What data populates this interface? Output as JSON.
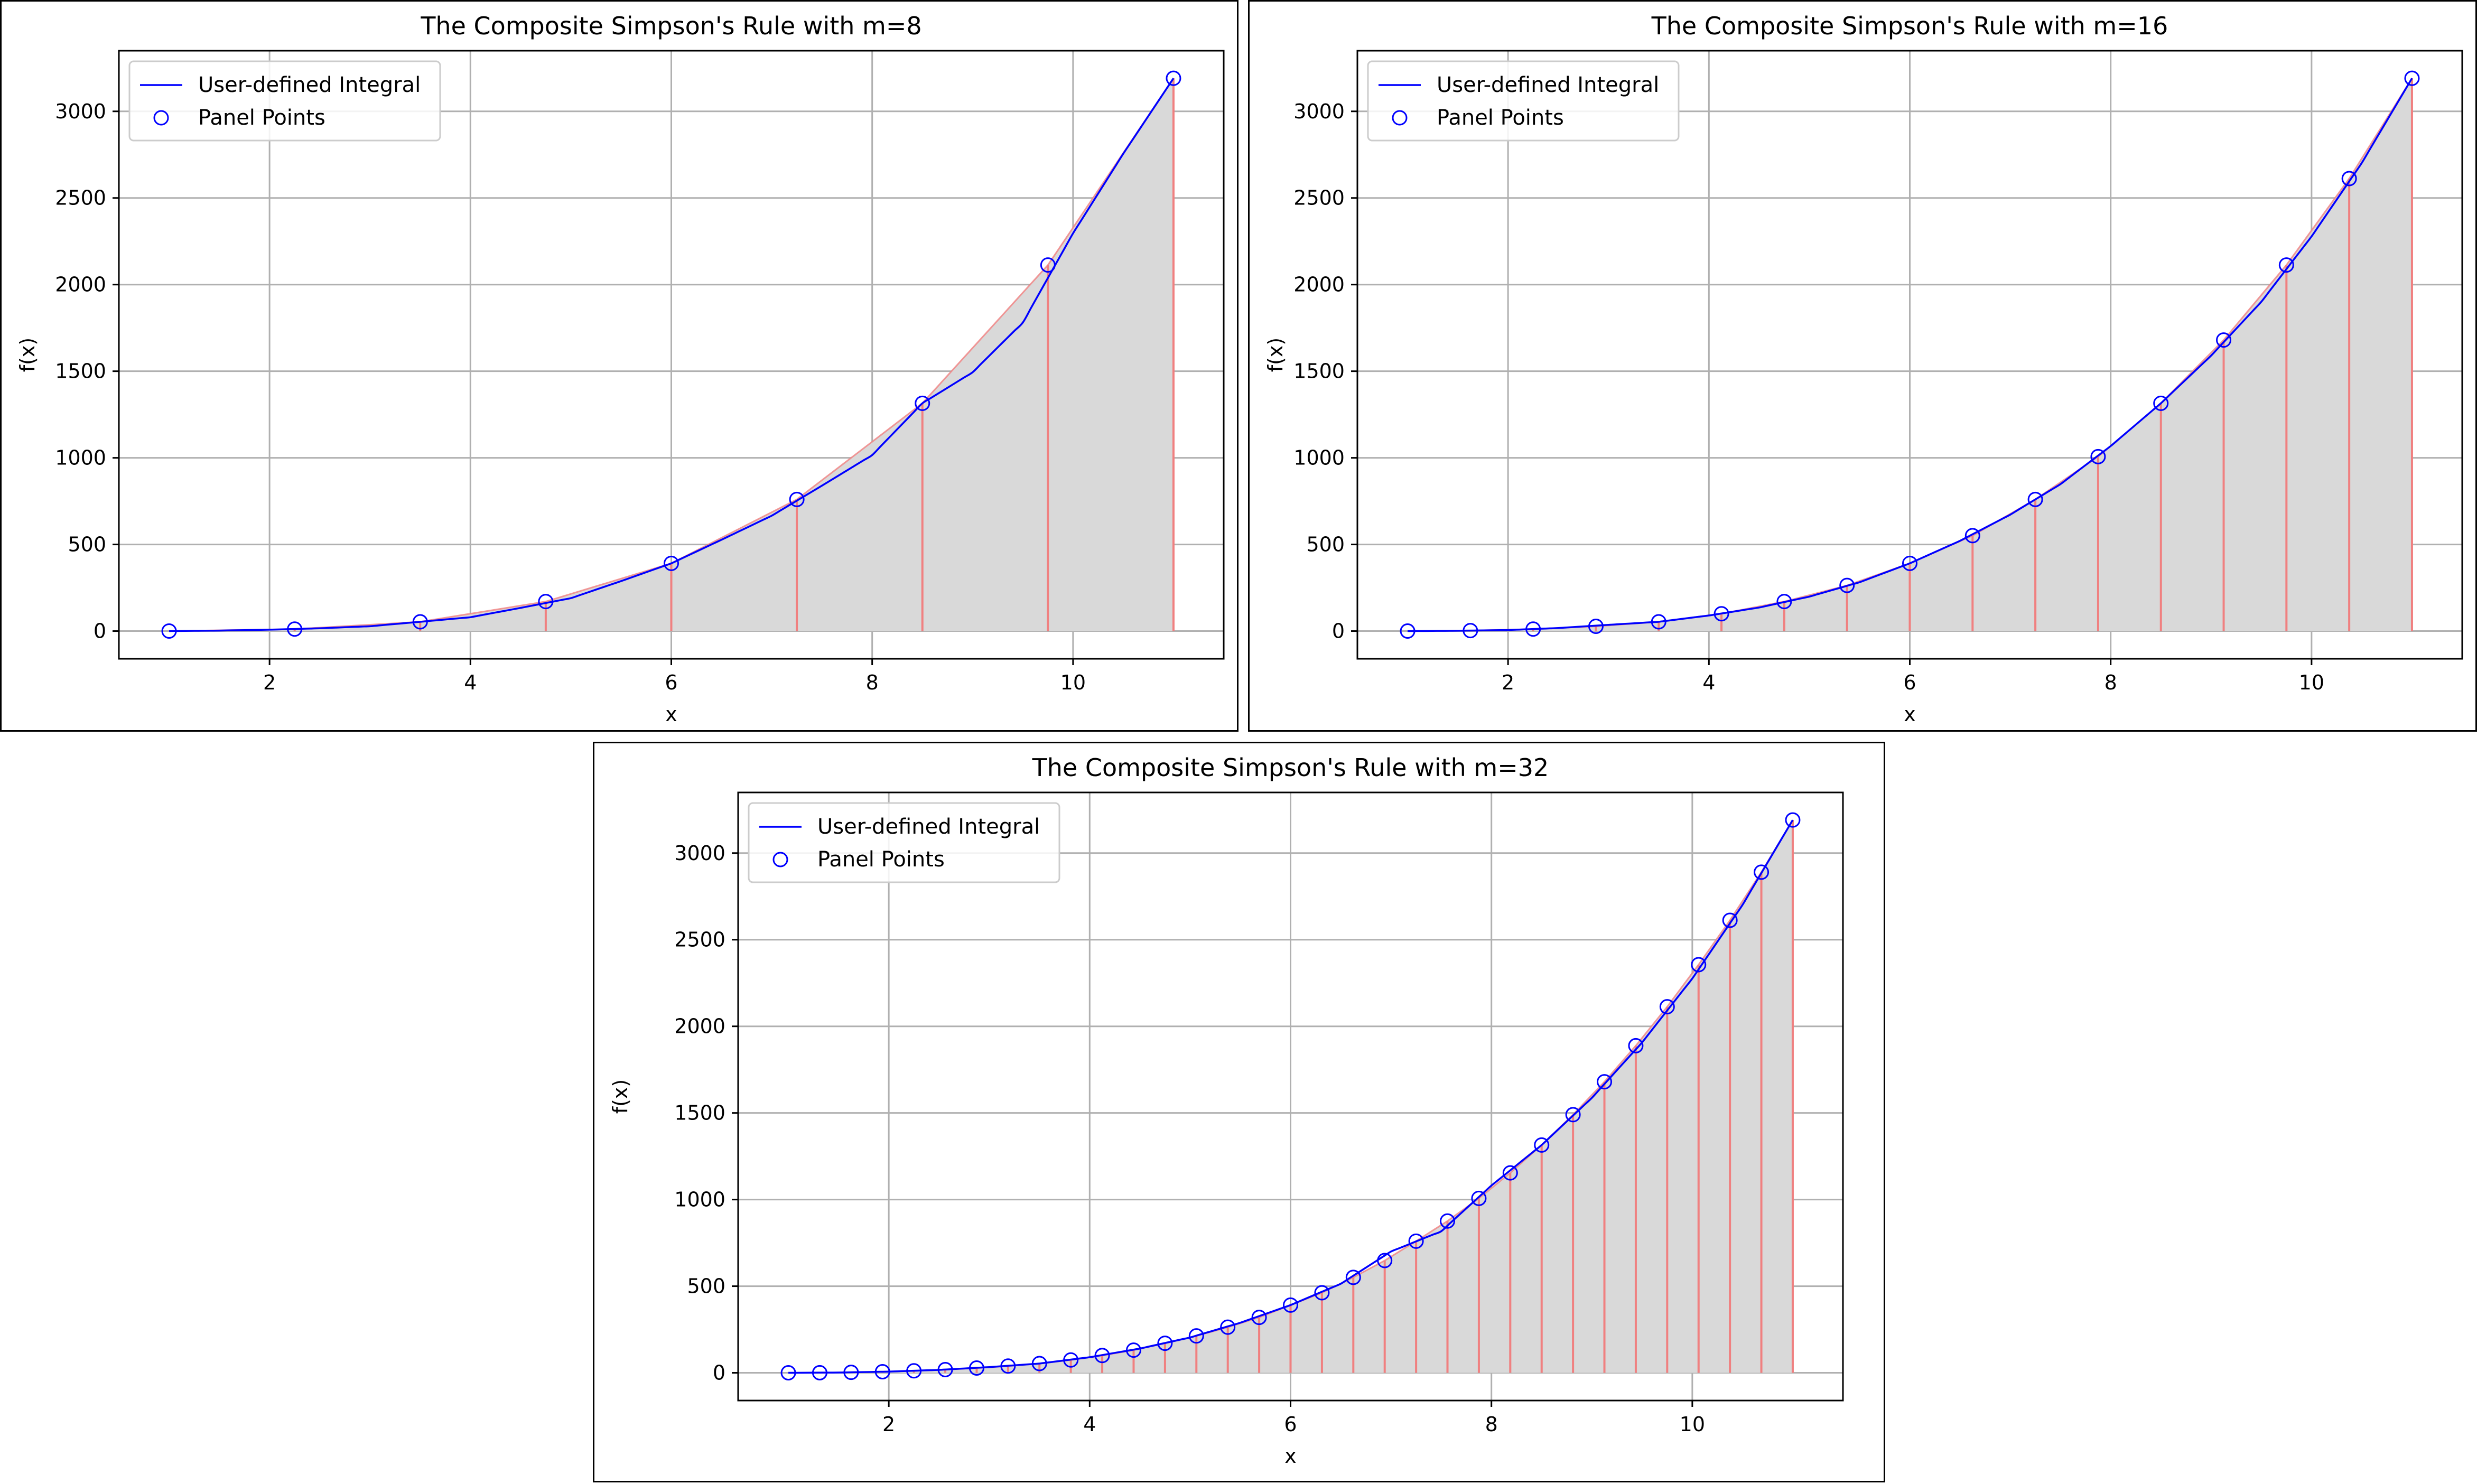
{
  "charts": [
    {
      "title": "The Composite Simpson's Rule with m=8",
      "xlabel": "x",
      "ylabel": "f(x)",
      "legend": {
        "line_label": "User-defined Integral",
        "points_label": "Panel Points",
        "position": "top-left"
      }
    },
    {
      "title": "The Composite Simpson's Rule with m=16",
      "xlabel": "x",
      "ylabel": "f(x)",
      "legend": {
        "line_label": "User-defined Integral",
        "points_label": "Panel Points",
        "position": "top-left"
      }
    },
    {
      "title": "The Composite Simpson's Rule with m=32",
      "xlabel": "x",
      "ylabel": "f(x)",
      "legend": {
        "line_label": "User-defined Integral",
        "points_label": "Panel Points",
        "position": "top-left"
      }
    }
  ],
  "colors": {
    "curve": "#0000ff",
    "points": "#0000ff",
    "fill": "#d9d9d9",
    "verticals": "#f08080",
    "grid": "#b0b0b0"
  },
  "chart_data": [
    {
      "type": "line",
      "title": "The Composite Simpson's Rule with m=8",
      "xlabel": "x",
      "ylabel": "f(x)",
      "xlim": [
        0.5,
        11.5
      ],
      "ylim": [
        -160,
        3350
      ],
      "xticks": [
        2,
        4,
        6,
        8,
        10
      ],
      "yticks": [
        0,
        500,
        1000,
        1500,
        2000,
        2500,
        3000
      ],
      "grid": true,
      "legend": "top-left",
      "series": [
        {
          "name": "Panel Points",
          "x": [
            1.0,
            2.25,
            3.5,
            4.75,
            6.0,
            7.25,
            8.5,
            9.75,
            11.0
          ],
          "y": [
            0,
            11.4,
            53.6,
            170.4,
            391.0,
            760.0,
            1315.0,
            2113.0,
            3191.0
          ]
        },
        {
          "name": "User-defined Integral",
          "x": [
            1.0,
            1.5,
            2.0,
            2.5,
            3.0,
            3.5,
            4.0,
            4.5,
            5.0,
            5.5,
            6.0,
            6.5,
            7.0,
            7.5,
            8.0,
            8.5,
            9.0,
            9.5,
            10.0,
            10.5,
            11.0
          ],
          "y": [
            0.0,
            2.9,
            8.0,
            16.1,
            28.0,
            53.6,
            80.0,
            133.9,
            190.0,
            288.4,
            391.0,
            527.2,
            666.0,
            839.4,
            1016.0,
            1315.0,
            1494.0,
            1781.2,
            2296.0,
            2755.4,
            3191.0
          ]
        }
      ]
    },
    {
      "type": "line",
      "title": "The Composite Simpson's Rule with m=16",
      "xlabel": "x",
      "ylabel": "f(x)",
      "xlim": [
        0.5,
        11.5
      ],
      "ylim": [
        -160,
        3350
      ],
      "xticks": [
        2,
        4,
        6,
        8,
        10
      ],
      "yticks": [
        0,
        500,
        1000,
        1500,
        2000,
        2500,
        3000
      ],
      "grid": true,
      "legend": "top-left",
      "series": [
        {
          "name": "Panel Points",
          "x": [
            1.0,
            1.625,
            2.25,
            2.875,
            3.5,
            4.125,
            4.75,
            5.375,
            6.0,
            6.625,
            7.25,
            7.875,
            8.5,
            9.125,
            9.75,
            10.375,
            11.0
          ],
          "y": [
            0,
            2.7,
            11.4,
            27.6,
            53.6,
            100.0,
            170.4,
            263.4,
            391.0,
            551.0,
            760.0,
            1007.0,
            1315.0,
            1680.0,
            2113.0,
            2612.0,
            3191.0
          ]
        },
        {
          "name": "User-defined Integral",
          "x": [
            1.0,
            1.5,
            2.0,
            2.5,
            3.0,
            3.5,
            4.0,
            4.5,
            5.0,
            5.5,
            6.0,
            6.5,
            7.0,
            7.5,
            8.0,
            8.5,
            9.0,
            9.5,
            10.0,
            10.5,
            11.0
          ],
          "y": [
            0.0,
            1.9,
            6.0,
            17.6,
            36.0,
            53.6,
            90.0,
            136.0,
            199.0,
            282.0,
            391.0,
            521.0,
            672.0,
            848.0,
            1068.0,
            1315.0,
            1590.0,
            1901.0,
            2278.0,
            2702.0,
            3191.0
          ]
        }
      ]
    },
    {
      "type": "line",
      "title": "The Composite Simpson's Rule with m=32",
      "xlabel": "x",
      "ylabel": "f(x)",
      "xlim": [
        0.5,
        11.5
      ],
      "ylim": [
        -160,
        3350
      ],
      "xticks": [
        2,
        4,
        6,
        8,
        10
      ],
      "yticks": [
        0,
        500,
        1000,
        1500,
        2000,
        2500,
        3000
      ],
      "grid": true,
      "legend": "top-left",
      "series": [
        {
          "name": "Panel Points",
          "x": [
            1.0,
            1.3125,
            1.625,
            1.9375,
            2.25,
            2.5625,
            2.875,
            3.1875,
            3.5,
            3.8125,
            4.125,
            4.4375,
            4.75,
            5.0625,
            5.375,
            5.6875,
            6.0,
            6.3125,
            6.625,
            6.9375,
            7.25,
            7.5625,
            7.875,
            8.1875,
            8.5,
            8.8125,
            9.125,
            9.4375,
            9.75,
            10.0625,
            10.375,
            10.6875,
            11.0
          ],
          "y": [
            0,
            0.6,
            2.7,
            6.3,
            11.4,
            18.4,
            27.6,
            39.1,
            53.6,
            74.0,
            100.0,
            131.0,
            170.4,
            213.0,
            263.4,
            320.0,
            391.0,
            462.0,
            551.0,
            648.0,
            760.0,
            876.0,
            1007.0,
            1154.0,
            1315.0,
            1490.0,
            1680.0,
            1888.0,
            2113.0,
            2356.0,
            2612.0,
            2890.0,
            3191.0
          ]
        },
        {
          "name": "User-defined Integral",
          "x": [
            1.0,
            1.5,
            2.0,
            2.5,
            3.0,
            3.5,
            4.0,
            4.5,
            5.0,
            5.5,
            6.0,
            6.5,
            7.0,
            7.5,
            8.0,
            8.5,
            9.0,
            9.5,
            10.0,
            10.5,
            11.0
          ],
          "y": [
            0.0,
            1.6,
            7.0,
            17.0,
            33.0,
            53.6,
            90.0,
            140.0,
            204.0,
            289.0,
            391.0,
            514.0,
            700.0,
            817.0,
            1081.0,
            1315.0,
            1587.0,
            1907.0,
            2276.0,
            2701.0,
            3191.0
          ]
        }
      ]
    }
  ]
}
